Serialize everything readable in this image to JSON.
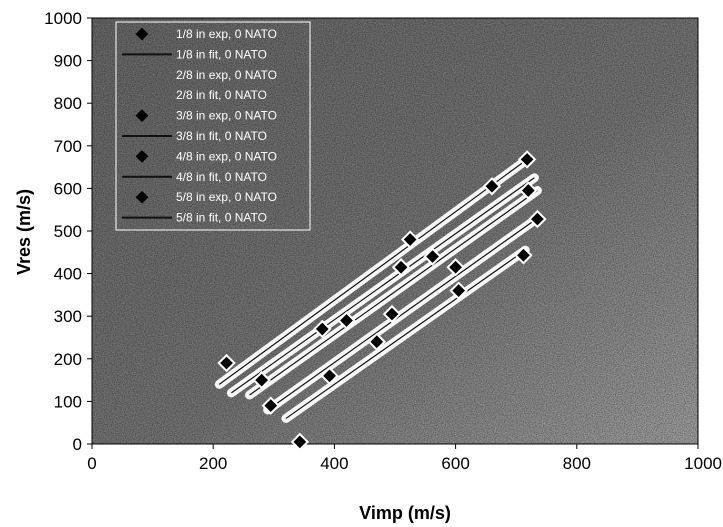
{
  "chart_data": {
    "type": "scatter",
    "xlabel": "Vimp (m/s)",
    "ylabel": "Vres (m/s)",
    "xlim": [
      0,
      1000
    ],
    "ylim": [
      0,
      1000
    ],
    "xticks": [
      "0",
      "200",
      "400",
      "600",
      "800",
      "1000"
    ],
    "yticks": [
      "0",
      "100",
      "200",
      "300",
      "400",
      "500",
      "600",
      "700",
      "800",
      "900",
      "1000"
    ],
    "grid": false,
    "legend_position": "top-left",
    "legend": [
      "1/8 in exp, 0 NATO",
      "1/8 in fit, 0 NATO",
      "2/8 in exp, 0 NATO",
      "2/8 in fit, 0 NATO",
      "3/8 in exp, 0 NATO",
      "3/8 in fit, 0 NATO",
      "4/8 in exp, 0 NATO",
      "4/8 in fit, 0 NATO",
      "5/8 in exp, 0 NATO",
      "5/8 in fit, 0 NATO"
    ],
    "series": [
      {
        "name": "1/8 in exp, 0 NATO",
        "kind": "scatter",
        "x": [
          222,
          525,
          660,
          718
        ],
        "y": [
          190,
          480,
          605,
          668
        ]
      },
      {
        "name": "1/8 in fit, 0 NATO",
        "kind": "line",
        "x": [
          210,
          720
        ],
        "y": [
          140,
          670
        ]
      },
      {
        "name": "2/8 in exp, 0 NATO",
        "kind": "scatter",
        "x": [
          380,
          510,
          562
        ],
        "y": [
          270,
          415,
          440
        ]
      },
      {
        "name": "2/8 in fit, 0 NATO",
        "kind": "line",
        "x": [
          230,
          730
        ],
        "y": [
          120,
          625
        ]
      },
      {
        "name": "3/8 in exp, 0 NATO",
        "kind": "scatter",
        "x": [
          280,
          420,
          600,
          720
        ],
        "y": [
          150,
          290,
          415,
          595
        ]
      },
      {
        "name": "3/8 in fit, 0 NATO",
        "kind": "line",
        "x": [
          260,
          735
        ],
        "y": [
          115,
          595
        ]
      },
      {
        "name": "4/8 in exp, 0 NATO",
        "kind": "scatter",
        "x": [
          295,
          495,
          735
        ],
        "y": [
          90,
          305,
          528
        ]
      },
      {
        "name": "4/8 in fit, 0 NATO",
        "kind": "line",
        "x": [
          290,
          735
        ],
        "y": [
          80,
          530
        ]
      },
      {
        "name": "5/8 in exp, 0 NATO",
        "kind": "scatter",
        "x": [
          343,
          392,
          470,
          605,
          712
        ],
        "y": [
          5,
          160,
          240,
          360,
          443
        ]
      },
      {
        "name": "5/8 in fit, 0 NATO",
        "kind": "line",
        "x": [
          320,
          715
        ],
        "y": [
          60,
          455
        ]
      }
    ]
  }
}
